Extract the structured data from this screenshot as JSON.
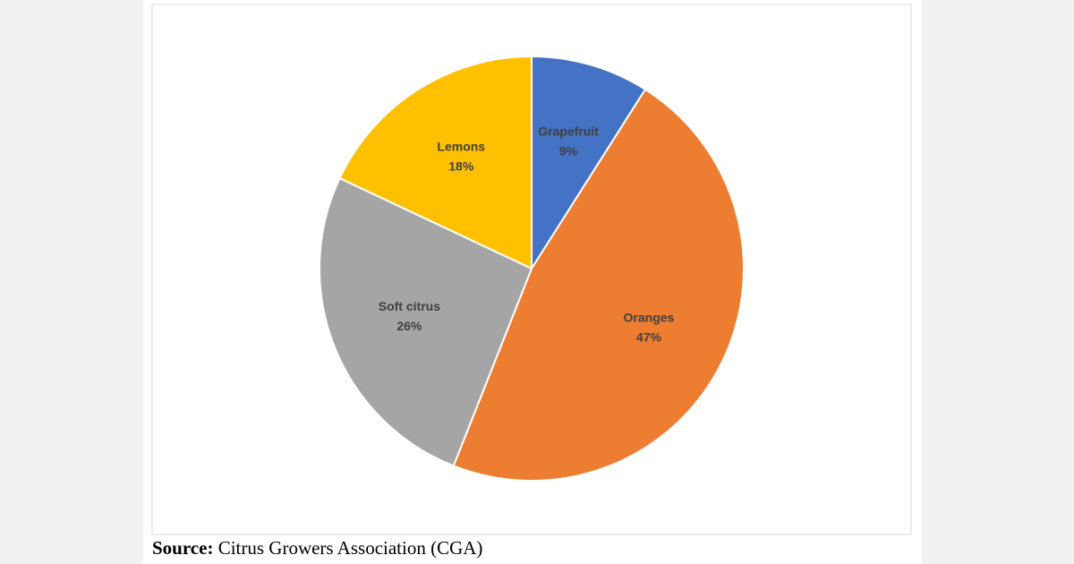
{
  "chart_data": {
    "type": "pie",
    "categories": [
      "Grapefruit",
      "Oranges",
      "Soft citrus",
      "Lemons"
    ],
    "values": [
      9,
      47,
      26,
      18
    ],
    "value_labels": [
      "9%",
      "47%",
      "26%",
      "18%"
    ],
    "colors": [
      "#4472c4",
      "#ed7d31",
      "#a5a5a5",
      "#ffc000"
    ],
    "source_label": "Source:",
    "source": "Citrus Growers Association (CGA)"
  }
}
